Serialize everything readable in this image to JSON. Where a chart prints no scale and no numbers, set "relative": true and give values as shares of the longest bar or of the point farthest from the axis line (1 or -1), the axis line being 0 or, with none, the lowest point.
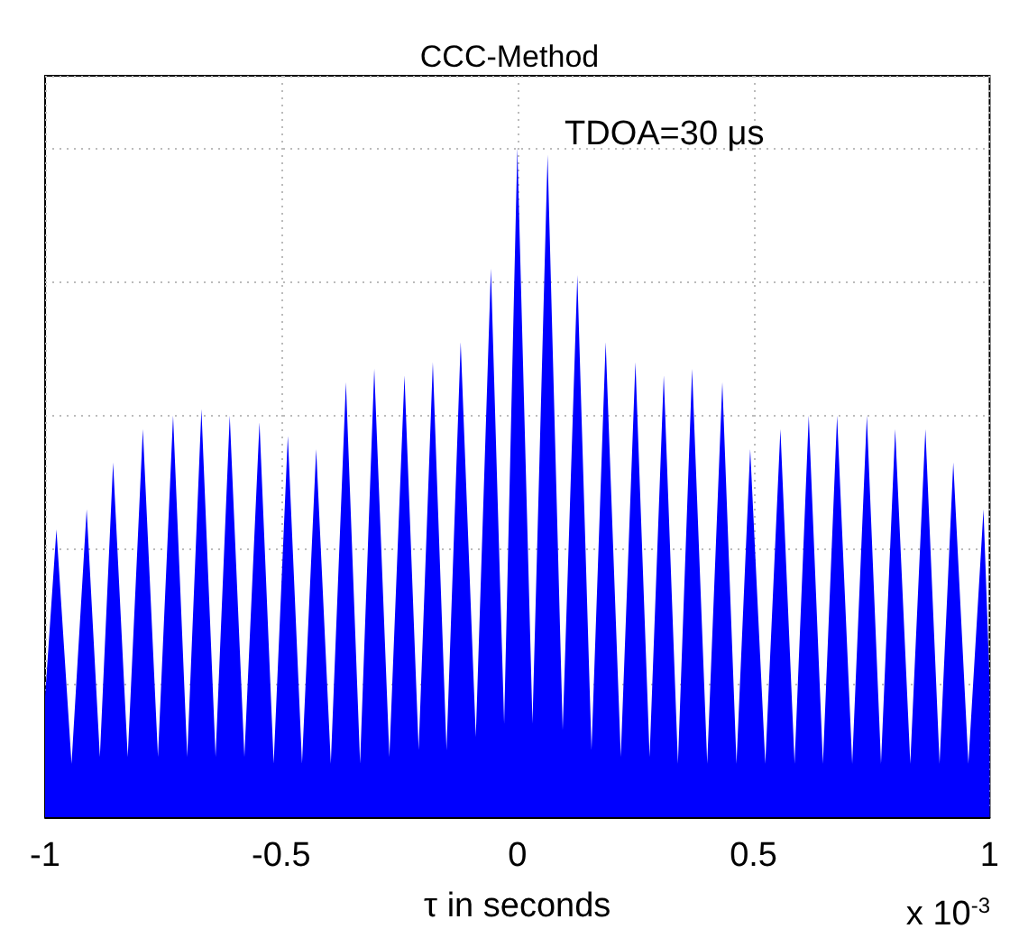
{
  "chart_data": {
    "type": "area",
    "title": "CCC-Method",
    "xlabel": "τ in seconds",
    "relative": true,
    "tick_labels": "x",
    "grid": true,
    "xlim": [
      -1,
      1
    ],
    "xticks": [
      -1,
      -0.5,
      0,
      0.5,
      1
    ],
    "annotations": [
      "TDOA=30 μs",
      "x 10$^{-3}$"
    ],
    "series": [
      {
        "color": "#0000ff",
        "x": [
          -1,
          -0.976,
          -0.944,
          -0.912,
          -0.884,
          -0.856,
          -0.825,
          -0.793,
          -0.761,
          -0.729,
          -0.699,
          -0.669,
          -0.639,
          -0.609,
          -0.578,
          -0.546,
          -0.516,
          -0.486,
          -0.456,
          -0.426,
          -0.395,
          -0.363,
          -0.333,
          -0.303,
          -0.271,
          -0.239,
          -0.209,
          -0.179,
          -0.15,
          -0.12,
          -0.088,
          -0.056,
          -0.028,
          0,
          0.032,
          0.064,
          0.096,
          0.127,
          0.157,
          0.187,
          0.219,
          0.25,
          0.28,
          0.31,
          0.34,
          0.37,
          0.402,
          0.434,
          0.464,
          0.493,
          0.525,
          0.557,
          0.587,
          0.617,
          0.647,
          0.677,
          0.709,
          0.74,
          0.77,
          0.8,
          0.832,
          0.864,
          0.894,
          0.923,
          0.955,
          0.987,
          1
        ],
        "values": [
          0.18,
          0.43,
          0.08,
          0.46,
          0.09,
          0.53,
          0.09,
          0.58,
          0.09,
          0.6,
          0.09,
          0.61,
          0.09,
          0.6,
          0.09,
          0.59,
          0.08,
          0.57,
          0.08,
          0.55,
          0.08,
          0.65,
          0.08,
          0.67,
          0.09,
          0.66,
          0.1,
          0.68,
          0.1,
          0.71,
          0.12,
          0.82,
          0.14,
          1,
          0.14,
          0.99,
          0.13,
          0.81,
          0.1,
          0.71,
          0.09,
          0.68,
          0.09,
          0.66,
          0.08,
          0.67,
          0.08,
          0.65,
          0.08,
          0.55,
          0.08,
          0.58,
          0.08,
          0.6,
          0.08,
          0.6,
          0.08,
          0.6,
          0.08,
          0.58,
          0.08,
          0.58,
          0.08,
          0.53,
          0.08,
          0.46,
          0.2
        ]
      }
    ]
  }
}
